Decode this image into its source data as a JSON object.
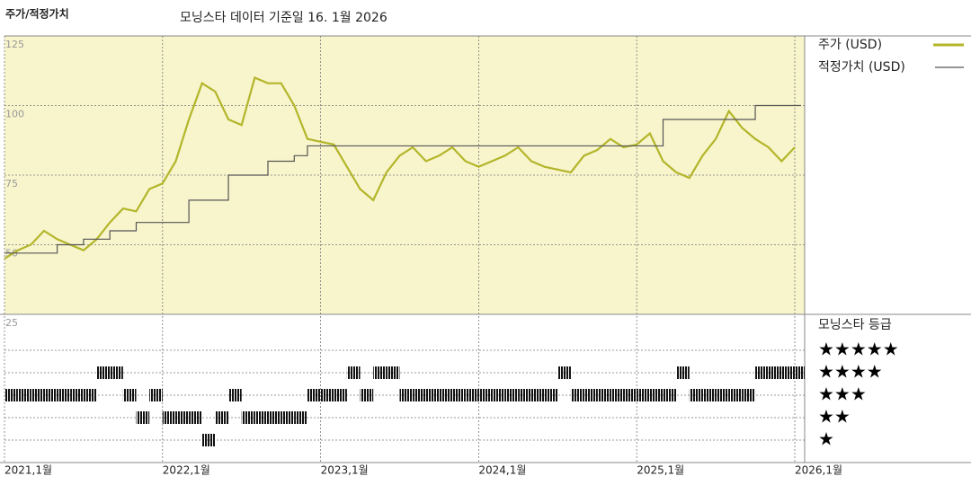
{
  "chart_data": {
    "type": "line",
    "title": "주가/적정가치",
    "subtitle": "모닝스타 데이터 기준일 16. 1월 2026",
    "x": [
      "2021-01",
      "2021-02",
      "2021-03",
      "2021-04",
      "2021-05",
      "2021-06",
      "2021-07",
      "2021-08",
      "2021-09",
      "2021-10",
      "2021-11",
      "2021-12",
      "2022-01",
      "2022-02",
      "2022-03",
      "2022-04",
      "2022-05",
      "2022-06",
      "2022-07",
      "2022-08",
      "2022-09",
      "2022-10",
      "2022-11",
      "2022-12",
      "2023-01",
      "2023-02",
      "2023-03",
      "2023-04",
      "2023-05",
      "2023-06",
      "2023-07",
      "2023-08",
      "2023-09",
      "2023-10",
      "2023-11",
      "2023-12",
      "2024-01",
      "2024-02",
      "2024-03",
      "2024-04",
      "2024-05",
      "2024-06",
      "2024-07",
      "2024-08",
      "2024-09",
      "2024-10",
      "2024-11",
      "2024-12",
      "2025-01",
      "2025-02",
      "2025-03",
      "2025-04",
      "2025-05",
      "2025-06",
      "2025-07",
      "2025-08",
      "2025-09",
      "2025-10",
      "2025-11",
      "2025-12",
      "2026-01"
    ],
    "series": [
      {
        "name": "주가 (USD)",
        "color": "#b3b52a",
        "values": [
          45,
          48,
          50,
          55,
          52,
          50,
          48,
          52,
          58,
          63,
          62,
          70,
          72,
          80,
          95,
          108,
          105,
          95,
          93,
          110,
          108,
          108,
          100,
          88,
          87,
          86,
          78,
          70,
          66,
          76,
          82,
          85,
          80,
          82,
          85,
          80,
          78,
          80,
          82,
          85,
          80,
          78,
          77,
          76,
          82,
          84,
          88,
          85,
          86,
          90,
          80,
          76,
          74,
          82,
          88,
          98,
          92,
          88,
          85,
          80,
          85
        ]
      },
      {
        "name": "적정가치 (USD)",
        "color": "#555555",
        "step": true,
        "values": [
          47,
          47,
          47,
          47,
          50,
          50,
          52,
          52,
          55,
          55,
          58,
          58,
          58,
          58,
          66,
          66,
          66,
          75,
          75,
          75,
          80,
          80,
          82,
          85.5,
          85.5,
          85.5,
          85.5,
          85.5,
          85.5,
          85.5,
          85.5,
          85.5,
          85.5,
          85.5,
          85.5,
          85.5,
          85.5,
          85.5,
          85.5,
          85.5,
          85.5,
          85.5,
          85.5,
          85.5,
          85.5,
          85.5,
          85.5,
          85.5,
          85.5,
          85.5,
          95,
          95,
          95,
          95,
          95,
          95,
          95,
          100,
          100,
          100,
          100
        ]
      }
    ],
    "ylim": [
      25,
      125
    ],
    "yticks": [
      25,
      50,
      75,
      100,
      125
    ],
    "xticks": [
      {
        "value": "2021-01",
        "label": "2021,1월"
      },
      {
        "value": "2022-01",
        "label": "2022,1월"
      },
      {
        "value": "2023-01",
        "label": "2023,1월"
      },
      {
        "value": "2024-01",
        "label": "2024,1월"
      },
      {
        "value": "2025-01",
        "label": "2025,1월"
      },
      {
        "value": "2026-01",
        "label": "2026,1월"
      }
    ],
    "grid": true,
    "background": "#f8f5cc",
    "rating": {
      "title": "모닝스타 등급",
      "labels": [
        "★★★★★",
        "★★★★",
        "★★★",
        "★★",
        "★"
      ],
      "values": [
        3,
        3,
        3,
        3,
        3,
        3,
        3,
        4,
        4,
        3,
        2,
        3,
        2,
        2,
        2,
        1,
        2,
        3,
        2,
        2,
        2,
        2,
        2,
        3,
        3,
        3,
        4,
        3,
        4,
        4,
        3,
        3,
        3,
        3,
        3,
        3,
        3,
        3,
        3,
        3,
        3,
        3,
        4,
        3,
        3,
        3,
        3,
        3,
        3,
        3,
        3,
        4,
        3,
        3,
        3,
        3,
        3,
        4,
        4,
        4,
        4
      ]
    }
  }
}
